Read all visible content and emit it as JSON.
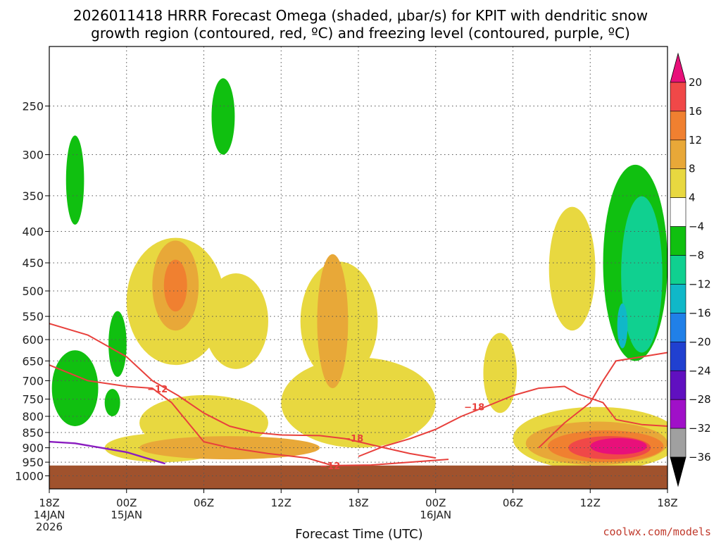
{
  "chart_data": {
    "type": "heatmap",
    "title_line1": "2026011418 HRRR Forecast Omega (shaded, μbar/s) for KPIT with dendritic snow",
    "title_line2": "growth region (contoured, red, ºC) and freezing level (contoured, purple, ºC)",
    "xlabel": "Forecast Time (UTC)",
    "credit": "coolwx.com/models",
    "y_ticks": [
      250,
      300,
      350,
      400,
      450,
      500,
      550,
      600,
      650,
      700,
      750,
      800,
      850,
      900,
      950,
      1000
    ],
    "y_tick_labels": [
      "250",
      "300",
      "350",
      "400",
      "450",
      "500",
      "550",
      "600",
      "650",
      "700",
      "750",
      "800",
      "850",
      "900",
      "950",
      "1000"
    ],
    "ylim_hpa": [
      1050,
      200
    ],
    "x_ticks_hours": [
      0,
      6,
      12,
      18,
      24,
      30,
      36,
      42,
      48
    ],
    "x_tick_labels": [
      "18Z",
      "00Z",
      "06Z",
      "12Z",
      "18Z",
      "00Z",
      "06Z",
      "12Z",
      "18Z"
    ],
    "x_date_labels": [
      {
        "hour": 0,
        "lines": [
          "14JAN",
          "2026"
        ]
      },
      {
        "hour": 6,
        "lines": [
          "15JAN"
        ]
      },
      {
        "hour": 30,
        "lines": [
          "16JAN"
        ]
      }
    ],
    "xlim_hours": [
      0,
      48
    ],
    "colorbar": {
      "tick_labels": [
        "20",
        "16",
        "12",
        "8",
        "4",
        "−4",
        "−8",
        "−12",
        "−16",
        "−20",
        "−24",
        "−28",
        "−32",
        "−36"
      ],
      "segments": [
        "#e8107a",
        "#f04848",
        "#f08030",
        "#e8a838",
        "#e8d840",
        "#ffffff",
        "#10c010",
        "#10d090",
        "#10b8c8",
        "#2080e8",
        "#2040d0",
        "#6010c0",
        "#a010c8",
        "#a0a0a0",
        "#000000"
      ]
    },
    "shade_colors": {
      "pos4": "#e8d840",
      "pos8": "#e8a838",
      "pos12": "#f08030",
      "pos16": "#f04848",
      "pos20": "#e8107a",
      "neg4": "#10c010",
      "neg8": "#10d090",
      "neg12": "#10b8c8",
      "ground": "#a0522d"
    },
    "contour_labels": [
      {
        "text": "−12",
        "hour": 8.4,
        "hpa": 722
      },
      {
        "text": "−18",
        "hour": 33.0,
        "hpa": 772
      },
      {
        "text": "−18",
        "hour": 23.6,
        "hpa": 868
      },
      {
        "text": "−12",
        "hour": 21.8,
        "hpa": 962
      }
    ],
    "omega_regions": [
      {
        "level": "pos4",
        "hour": 12.0,
        "hpa": 820,
        "rh": 5.0,
        "rp": 90
      },
      {
        "level": "pos4",
        "hour": 24.0,
        "hpa": 760,
        "rh": 6.0,
        "rp": 140
      },
      {
        "level": "pos4",
        "hour": 14.5,
        "hpa": 560,
        "rh": 2.5,
        "rp": 110
      },
      {
        "level": "pos4",
        "hour": 22.5,
        "hpa": 560,
        "rh": 3.0,
        "rp": 140
      },
      {
        "level": "pos4",
        "hour": 9.8,
        "hpa": 520,
        "rh": 3.8,
        "rp": 140
      },
      {
        "level": "pos8",
        "hour": 9.8,
        "hpa": 490,
        "rh": 1.8,
        "rp": 90
      },
      {
        "level": "pos12",
        "hour": 9.8,
        "hpa": 490,
        "rh": 0.9,
        "rp": 50
      },
      {
        "level": "pos4",
        "hour": 35.0,
        "hpa": 680,
        "rh": 1.3,
        "rp": 110
      },
      {
        "level": "pos4",
        "hour": 40.6,
        "hpa": 460,
        "rh": 1.8,
        "rp": 120
      },
      {
        "level": "pos4",
        "hour": 8.8,
        "hpa": 900,
        "rh": 4.5,
        "rp": 50
      },
      {
        "level": "pos8",
        "hour": 14.0,
        "hpa": 900,
        "rh": 7.0,
        "rp": 40
      },
      {
        "level": "pos8",
        "hour": 22.0,
        "hpa": 560,
        "rh": 1.2,
        "rp": 160
      },
      {
        "level": "pos4",
        "hour": 42.5,
        "hpa": 870,
        "rh": 6.5,
        "rp": 110
      },
      {
        "level": "pos8",
        "hour": 42.5,
        "hpa": 885,
        "rh": 5.5,
        "rp": 75
      },
      {
        "level": "pos12",
        "hour": 43.2,
        "hpa": 895,
        "rh": 4.5,
        "rp": 55
      },
      {
        "level": "pos16",
        "hour": 43.5,
        "hpa": 900,
        "rh": 3.2,
        "rp": 40
      },
      {
        "level": "pos20",
        "hour": 44.2,
        "hpa": 895,
        "rh": 2.2,
        "rp": 28
      },
      {
        "level": "neg4",
        "hour": 2.0,
        "hpa": 720,
        "rh": 1.8,
        "rp": 110
      },
      {
        "level": "neg4",
        "hour": 2.0,
        "hpa": 330,
        "rh": 0.7,
        "rp": 60
      },
      {
        "level": "neg4",
        "hour": 5.3,
        "hpa": 610,
        "rh": 0.7,
        "rp": 80
      },
      {
        "level": "neg4",
        "hour": 4.9,
        "hpa": 760,
        "rh": 0.6,
        "rp": 40
      },
      {
        "level": "neg4",
        "hour": 13.5,
        "hpa": 260,
        "rh": 0.9,
        "rp": 40
      },
      {
        "level": "neg4",
        "hour": 45.5,
        "hpa": 450,
        "rh": 2.5,
        "rp": 200
      },
      {
        "level": "neg8",
        "hour": 46.0,
        "hpa": 470,
        "rh": 1.6,
        "rp": 160
      },
      {
        "level": "neg12",
        "hour": 44.5,
        "hpa": 570,
        "rh": 0.4,
        "rp": 50
      }
    ],
    "contours": [
      {
        "name": "dgz-minus12-upper",
        "color": "#e8403c",
        "points": [
          [
            0,
            565
          ],
          [
            3,
            590
          ],
          [
            6,
            640
          ],
          [
            8,
            700
          ],
          [
            10,
            740
          ],
          [
            12,
            790
          ],
          [
            14,
            830
          ],
          [
            16,
            850
          ],
          [
            18,
            858
          ],
          [
            21,
            860
          ],
          [
            23,
            870
          ],
          [
            26,
            900
          ],
          [
            28,
            920
          ],
          [
            30,
            935
          ]
        ]
      },
      {
        "name": "dgz-minus12-lower",
        "color": "#e8403c",
        "points": [
          [
            0,
            660
          ],
          [
            3,
            700
          ],
          [
            6,
            715
          ],
          [
            8,
            720
          ],
          [
            9.5,
            760
          ],
          [
            11,
            830
          ],
          [
            12,
            880
          ],
          [
            14,
            900
          ],
          [
            17,
            920
          ],
          [
            20,
            935
          ],
          [
            22,
            962
          ],
          [
            25,
            960
          ],
          [
            28,
            950
          ],
          [
            31,
            940
          ]
        ]
      },
      {
        "name": "dgz-minus18-a",
        "color": "#e8403c",
        "points": [
          [
            24,
            930
          ],
          [
            26,
            895
          ],
          [
            28,
            870
          ],
          [
            30,
            840
          ],
          [
            32,
            800
          ],
          [
            34,
            770
          ],
          [
            36,
            740
          ],
          [
            38,
            720
          ],
          [
            40,
            715
          ],
          [
            41,
            735
          ],
          [
            43,
            760
          ],
          [
            44,
            810
          ],
          [
            46,
            825
          ],
          [
            48,
            830
          ]
        ]
      },
      {
        "name": "dgz-minus18-b",
        "color": "#e8403c",
        "points": [
          [
            38,
            900
          ],
          [
            40,
            820
          ],
          [
            42,
            760
          ],
          [
            43,
            700
          ],
          [
            44,
            650
          ],
          [
            46,
            640
          ],
          [
            48,
            630
          ]
        ]
      }
    ],
    "freezing_level": {
      "name": "freezing-level-0C",
      "color": "#8a1cc0",
      "points": [
        [
          0,
          880
        ],
        [
          2,
          885
        ],
        [
          4,
          900
        ],
        [
          6,
          915
        ],
        [
          7.5,
          935
        ],
        [
          9,
          955
        ]
      ]
    }
  }
}
